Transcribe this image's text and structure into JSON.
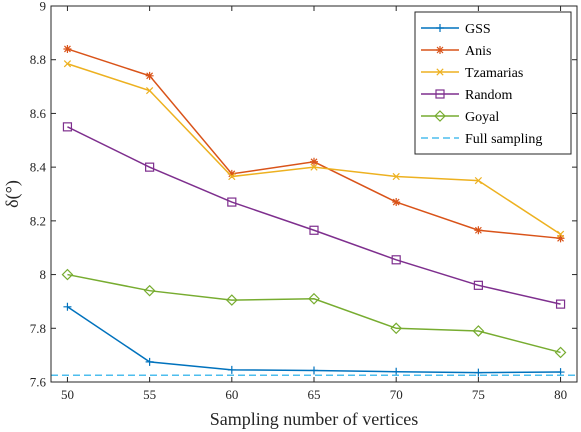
{
  "chart_data": {
    "type": "line",
    "xlabel": "Sampling number of vertices",
    "ylabel": "δ(°)",
    "x": [
      50,
      55,
      60,
      65,
      70,
      75,
      80
    ],
    "xlim": [
      49,
      81
    ],
    "ylim": [
      7.6,
      9.0
    ],
    "xticks": [
      "50",
      "55",
      "60",
      "65",
      "70",
      "75",
      "80"
    ],
    "yticks": [
      "7.6",
      "7.8",
      "8",
      "8.2",
      "8.4",
      "8.6",
      "8.8",
      "9"
    ],
    "grid": false,
    "legend_position": "top-right",
    "series": [
      {
        "name": "GSS",
        "color": "#0072BD",
        "marker": "plus",
        "values": [
          7.88,
          7.675,
          7.645,
          7.643,
          7.638,
          7.635,
          7.637
        ]
      },
      {
        "name": "Anis",
        "color": "#D95319",
        "marker": "asterisk",
        "values": [
          8.84,
          8.74,
          8.375,
          8.42,
          8.27,
          8.165,
          8.135
        ]
      },
      {
        "name": "Tzamarias",
        "color": "#EDB120",
        "marker": "x",
        "values": [
          8.785,
          8.685,
          8.365,
          8.4,
          8.365,
          8.35,
          8.15
        ]
      },
      {
        "name": "Random",
        "color": "#7E2F8E",
        "marker": "square",
        "values": [
          8.55,
          8.4,
          8.27,
          8.165,
          8.055,
          7.96,
          7.89
        ]
      },
      {
        "name": "Goyal",
        "color": "#77AC30",
        "marker": "diamond",
        "values": [
          8.0,
          7.94,
          7.905,
          7.91,
          7.8,
          7.79,
          7.71
        ]
      },
      {
        "name": "Full sampling",
        "color": "#4DBEEE",
        "marker": "none",
        "dashed": true,
        "values": [
          7.625,
          7.625,
          7.625,
          7.625,
          7.625,
          7.625,
          7.625
        ]
      }
    ]
  }
}
